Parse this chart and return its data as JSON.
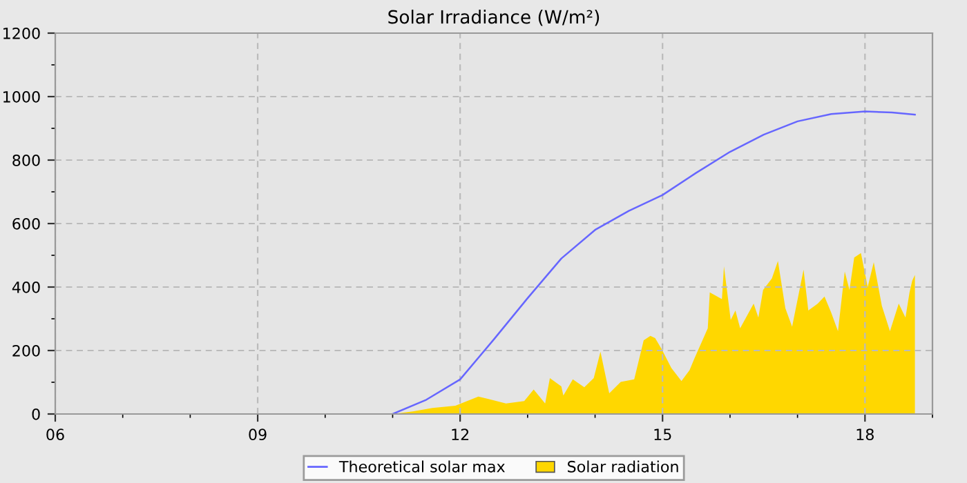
{
  "chart_data": {
    "type": "area",
    "title": "Solar Irradiance (W/m²)",
    "xlim": [
      6,
      19
    ],
    "ylim": [
      0,
      1200
    ],
    "xticks": [
      {
        "value": 6,
        "label": "06"
      },
      {
        "value": 7,
        "label": null
      },
      {
        "value": 8,
        "label": null
      },
      {
        "value": 9,
        "label": "09"
      },
      {
        "value": 10,
        "label": null
      },
      {
        "value": 11,
        "label": null
      },
      {
        "value": 12,
        "label": "12"
      },
      {
        "value": 13,
        "label": null
      },
      {
        "value": 14,
        "label": null
      },
      {
        "value": 15,
        "label": "15"
      },
      {
        "value": 16,
        "label": null
      },
      {
        "value": 17,
        "label": null
      },
      {
        "value": 18,
        "label": "18"
      },
      {
        "value": 19,
        "label": null
      }
    ],
    "yticks": [
      0,
      {
        "value": 100,
        "label": null
      },
      200,
      {
        "value": 300,
        "label": null
      },
      400,
      {
        "value": 500,
        "label": null
      },
      600,
      {
        "value": 700,
        "label": null
      },
      800,
      {
        "value": 900,
        "label": null
      },
      1000,
      {
        "value": 1100,
        "label": null
      },
      1200
    ],
    "grid": true,
    "legend": "bottom",
    "series": [
      {
        "name": "Theoretical solar max",
        "type": "line",
        "color": "#6666ff",
        "x": [
          11.0,
          11.5,
          12.0,
          12.5,
          13.0,
          13.5,
          14.0,
          14.5,
          15.0,
          15.5,
          16.0,
          16.5,
          17.0,
          17.5,
          18.0,
          18.4,
          18.74
        ],
        "values": [
          0,
          45,
          109,
          235,
          365,
          490,
          580,
          640,
          690,
          760,
          826,
          880,
          922,
          945,
          953,
          950,
          943
        ]
      },
      {
        "name": "Solar radiation",
        "color": "#ffd700",
        "x": [
          11.0,
          11.3,
          11.59,
          11.93,
          12.27,
          12.41,
          12.68,
          12.95,
          13.09,
          13.26,
          13.33,
          13.5,
          13.53,
          13.67,
          13.84,
          13.98,
          14.08,
          14.21,
          14.38,
          14.58,
          14.72,
          14.82,
          14.89,
          14.99,
          15.13,
          15.28,
          15.4,
          15.47,
          15.67,
          15.7,
          15.88,
          15.91,
          16.01,
          16.08,
          16.15,
          16.35,
          16.42,
          16.49,
          16.62,
          16.71,
          16.82,
          16.92,
          17.09,
          17.16,
          17.3,
          17.4,
          17.5,
          17.6,
          17.7,
          17.77,
          17.84,
          17.94,
          18.04,
          18.13,
          18.25,
          18.37,
          18.5,
          18.6,
          18.66,
          18.7,
          18.74
        ],
        "values": [
          0,
          8,
          19,
          26,
          55,
          48,
          33,
          41,
          77,
          33,
          113,
          87,
          58,
          109,
          84,
          113,
          196,
          65,
          101,
          109,
          232,
          246,
          239,
          203,
          145,
          104,
          138,
          174,
          270,
          383,
          362,
          465,
          296,
          326,
          270,
          348,
          304,
          391,
          427,
          482,
          333,
          275,
          455,
          326,
          348,
          370,
          319,
          261,
          449,
          391,
          493,
          507,
          400,
          478,
          341,
          261,
          348,
          304,
          383,
          420,
          438
        ]
      }
    ]
  }
}
